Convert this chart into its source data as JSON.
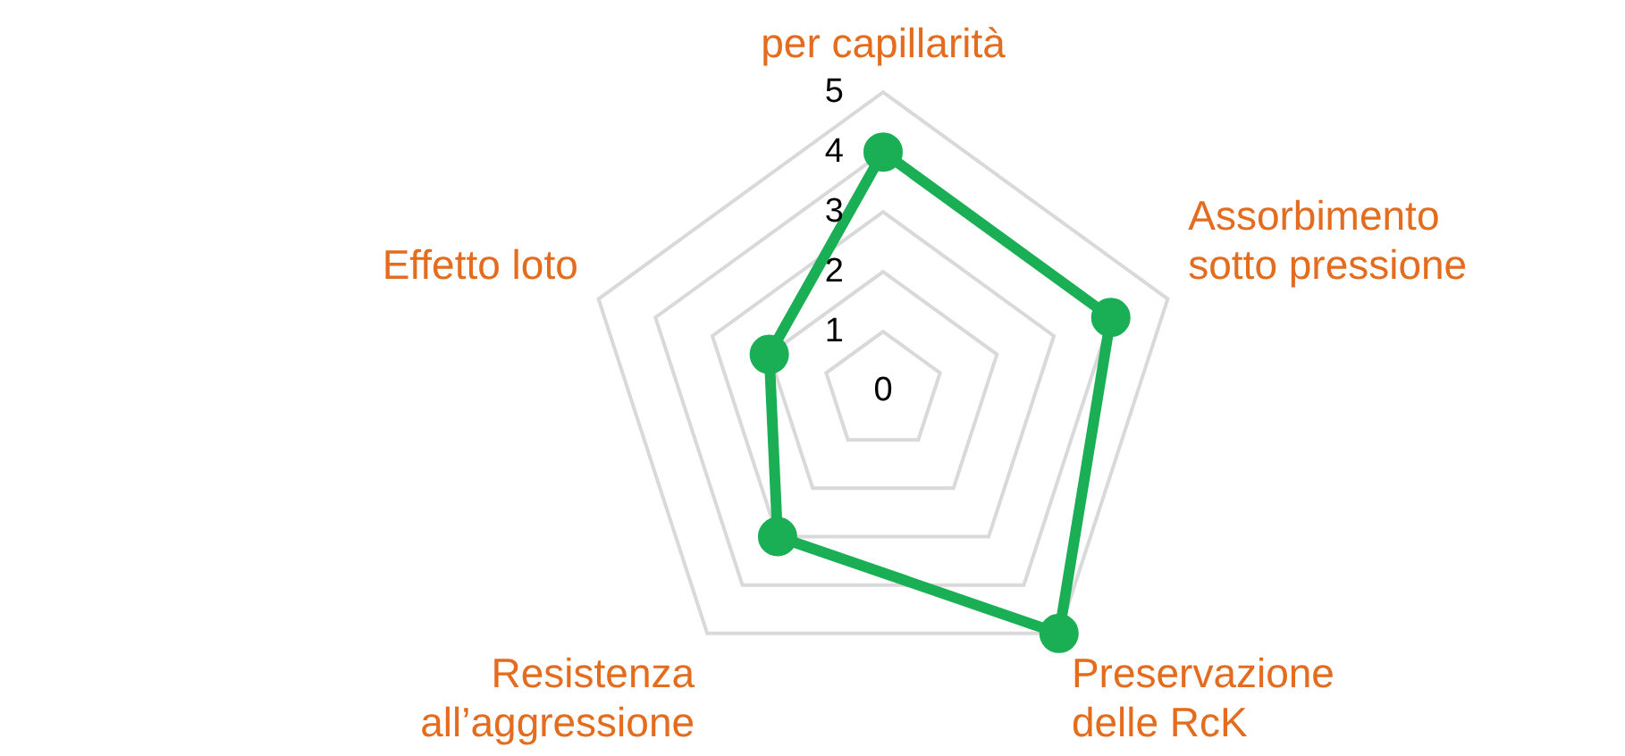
{
  "chart_data": {
    "type": "radar",
    "categories": [
      "per capillarità",
      "Assorbimento sotto pressione",
      "Preservazione delle RcK",
      "Resistenza all’aggressione",
      "Effetto loto"
    ],
    "series": [
      {
        "color": "#1aaf54",
        "values": [
          4,
          4,
          5,
          3,
          2
        ]
      }
    ],
    "ylim": [
      0,
      5
    ],
    "yticks": [
      0,
      1,
      2,
      3,
      4,
      5
    ],
    "grid": true,
    "marker": "circle",
    "legend": false
  }
}
